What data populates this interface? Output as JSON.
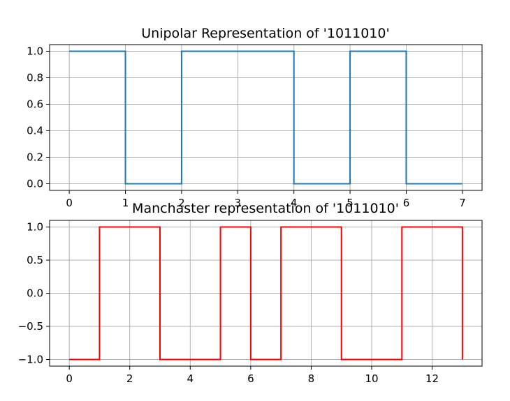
{
  "chart_data": [
    {
      "type": "line",
      "drawstyle": "steps-post",
      "title": "Unipolar Representation of '1011010'",
      "xlabel": "",
      "ylabel": "",
      "x": [
        0,
        1,
        2,
        3,
        4,
        5,
        6,
        7
      ],
      "series": [
        {
          "values": [
            1,
            0,
            1,
            1,
            0,
            1,
            0,
            0
          ],
          "color": "#1f77b4"
        }
      ],
      "xlim": [
        -0.35,
        7.35
      ],
      "ylim": [
        -0.05,
        1.05
      ],
      "xticks": [
        0,
        1,
        2,
        3,
        4,
        5,
        6,
        7
      ],
      "xtick_labels": [
        "0",
        "1",
        "2",
        "3",
        "4",
        "5",
        "6",
        "7"
      ],
      "yticks": [
        0.0,
        0.2,
        0.4,
        0.6,
        0.8,
        1.0
      ],
      "ytick_labels": [
        "0.0",
        "0.2",
        "0.4",
        "0.6",
        "0.8",
        "1.0"
      ],
      "grid": true
    },
    {
      "type": "line",
      "drawstyle": "steps-post",
      "title": "Manchaster representation of '1011010'",
      "xlabel": "",
      "ylabel": "",
      "x": [
        0,
        1,
        2,
        3,
        4,
        5,
        6,
        7,
        8,
        9,
        10,
        11,
        12,
        13
      ],
      "series": [
        {
          "values": [
            -1,
            1,
            1,
            -1,
            -1,
            1,
            -1,
            1,
            1,
            -1,
            -1,
            1,
            1,
            -1
          ],
          "color": "#ff0000"
        }
      ],
      "xlim": [
        -0.65,
        13.65
      ],
      "ylim": [
        -1.1,
        1.1
      ],
      "xticks": [
        0,
        2,
        4,
        6,
        8,
        10,
        12
      ],
      "xtick_labels": [
        "0",
        "2",
        "4",
        "6",
        "8",
        "10",
        "12"
      ],
      "yticks": [
        -1.0,
        -0.5,
        0.0,
        0.5,
        1.0
      ],
      "ytick_labels": [
        "−1.0",
        "−0.5",
        "0.0",
        "0.5",
        "1.0"
      ],
      "grid": true
    }
  ]
}
